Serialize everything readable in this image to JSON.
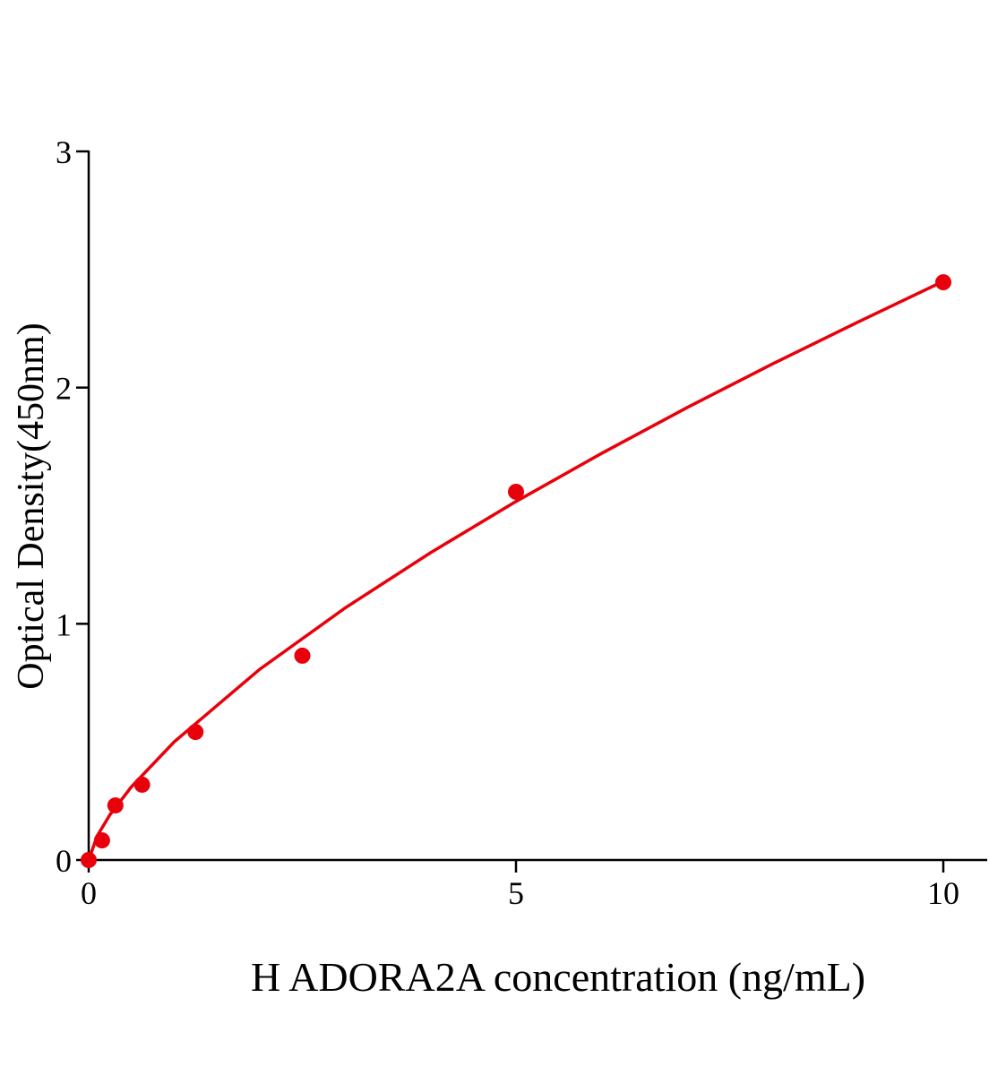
{
  "chart_data": {
    "type": "scatter",
    "title": "",
    "xlabel": "H ADORA2A concentration (ng/mL)",
    "ylabel": "Optical Density(450nm)",
    "xlim": [
      0,
      10.5
    ],
    "ylim": [
      0,
      3
    ],
    "xticks": [
      0,
      5,
      10
    ],
    "yticks": [
      0,
      1,
      2,
      3
    ],
    "xtick_labels": [
      "0",
      "5",
      "10"
    ],
    "ytick_labels": [
      "0",
      "1",
      "2",
      "3"
    ],
    "grid": false,
    "legend": "none",
    "color": "#e8000b",
    "points": {
      "x": [
        0,
        0.156,
        0.3125,
        0.625,
        1.25,
        2.5,
        5,
        10
      ],
      "y": [
        0.0,
        0.083,
        0.231,
        0.319,
        0.542,
        0.865,
        1.559,
        2.446
      ]
    },
    "fit_curve": {
      "x": [
        0,
        0.1,
        0.25,
        0.5,
        1,
        2,
        3,
        4,
        5,
        6,
        7,
        8,
        9,
        10
      ],
      "y": [
        0,
        0.102,
        0.192,
        0.31,
        0.5,
        0.807,
        1.067,
        1.301,
        1.518,
        1.721,
        1.915,
        2.1,
        2.277,
        2.45
      ]
    }
  }
}
